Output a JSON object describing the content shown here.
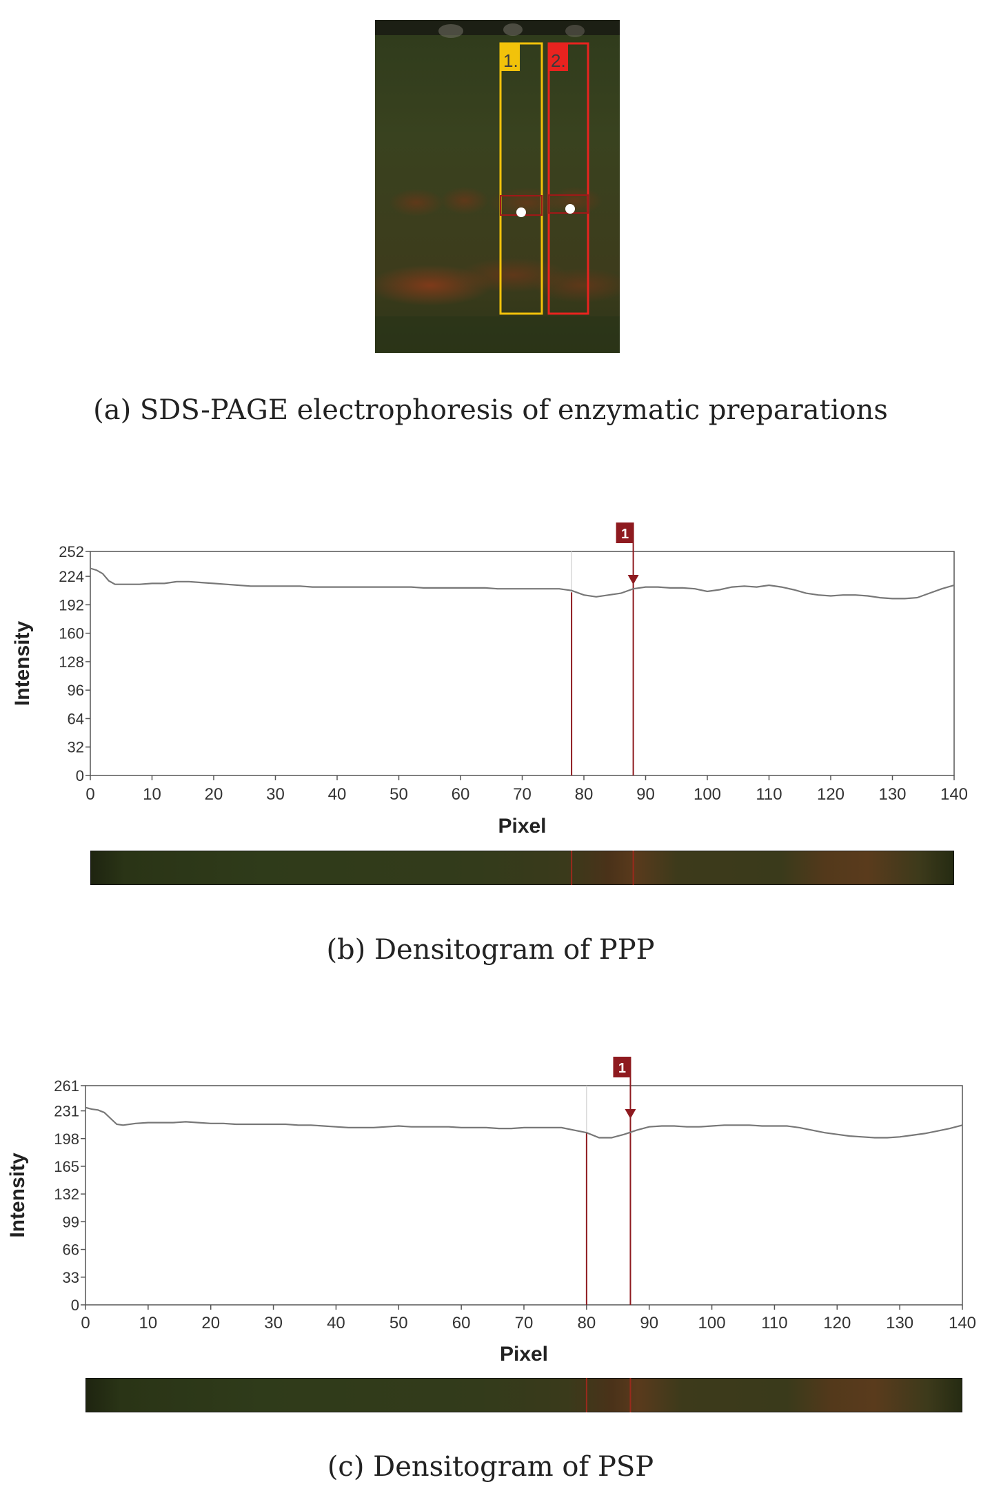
{
  "gel": {
    "lanes": [
      {
        "label": "1.",
        "color": "#f2c20a"
      },
      {
        "label": "2.",
        "color": "#e8231f"
      }
    ]
  },
  "captions": {
    "a": "(a) SDS-PAGE electrophoresis of enzymatic preparations",
    "b": "(b) Densitogram of PPP",
    "c": "(c) Densitogram of PSP"
  },
  "chart_data": [
    {
      "type": "line",
      "title": "",
      "xlabel": "Pixel",
      "ylabel": "Intensity",
      "xlim": [
        0,
        140
      ],
      "ylim": [
        0,
        252
      ],
      "xticks": [
        0,
        10,
        20,
        30,
        40,
        50,
        60,
        70,
        80,
        90,
        100,
        110,
        120,
        130,
        140
      ],
      "yticks": [
        0,
        32,
        64,
        96,
        128,
        160,
        192,
        224,
        252
      ],
      "marker_label": "1",
      "bounds": [
        78,
        88
      ],
      "peak": 88,
      "line_color": "#777777",
      "marker_color": "#8e1a1f",
      "x": [
        0,
        1,
        2,
        3,
        4,
        6,
        8,
        10,
        12,
        14,
        16,
        18,
        20,
        22,
        24,
        26,
        28,
        30,
        32,
        34,
        36,
        38,
        40,
        42,
        44,
        46,
        48,
        50,
        52,
        54,
        56,
        58,
        60,
        62,
        64,
        66,
        68,
        70,
        72,
        74,
        76,
        78,
        80,
        82,
        84,
        86,
        88,
        90,
        92,
        94,
        96,
        98,
        100,
        102,
        104,
        106,
        108,
        110,
        112,
        114,
        116,
        118,
        120,
        122,
        124,
        126,
        128,
        130,
        132,
        134,
        136,
        138,
        140
      ],
      "y": [
        233,
        231,
        227,
        219,
        215,
        215,
        215,
        216,
        216,
        218,
        218,
        217,
        216,
        215,
        214,
        213,
        213,
        213,
        213,
        213,
        212,
        212,
        212,
        212,
        212,
        212,
        212,
        212,
        212,
        211,
        211,
        211,
        211,
        211,
        211,
        210,
        210,
        210,
        210,
        210,
        210,
        208,
        203,
        201,
        203,
        205,
        210,
        212,
        212,
        211,
        211,
        210,
        207,
        209,
        212,
        213,
        212,
        214,
        212,
        209,
        205,
        203,
        202,
        203,
        203,
        202,
        200,
        199,
        199,
        200,
        205,
        210,
        214
      ]
    },
    {
      "type": "line",
      "title": "",
      "xlabel": "Pixel",
      "ylabel": "Intensity",
      "xlim": [
        0,
        140
      ],
      "ylim": [
        0,
        261
      ],
      "xticks": [
        0,
        10,
        20,
        30,
        40,
        50,
        60,
        70,
        80,
        90,
        100,
        110,
        120,
        130,
        140
      ],
      "yticks": [
        0,
        33,
        66,
        99,
        132,
        165,
        198,
        231,
        261
      ],
      "marker_label": "1",
      "bounds": [
        80,
        87
      ],
      "peak": 87,
      "line_color": "#777777",
      "marker_color": "#8e1a1f",
      "x": [
        0,
        1,
        2,
        3,
        4,
        5,
        6,
        8,
        10,
        12,
        14,
        16,
        18,
        20,
        22,
        24,
        26,
        28,
        30,
        32,
        34,
        36,
        38,
        40,
        42,
        44,
        46,
        48,
        50,
        52,
        54,
        56,
        58,
        60,
        62,
        64,
        66,
        68,
        70,
        72,
        74,
        76,
        78,
        80,
        82,
        84,
        86,
        88,
        90,
        92,
        94,
        96,
        98,
        100,
        102,
        104,
        106,
        108,
        110,
        112,
        114,
        116,
        118,
        120,
        122,
        124,
        126,
        128,
        130,
        132,
        134,
        136,
        138,
        140
      ],
      "y": [
        235,
        233,
        232,
        229,
        222,
        215,
        214,
        216,
        217,
        217,
        217,
        218,
        217,
        216,
        216,
        215,
        215,
        215,
        215,
        215,
        214,
        214,
        213,
        212,
        211,
        211,
        211,
        212,
        213,
        212,
        212,
        212,
        212,
        211,
        211,
        211,
        210,
        210,
        211,
        211,
        211,
        211,
        208,
        205,
        199,
        199,
        203,
        208,
        212,
        213,
        213,
        212,
        212,
        213,
        214,
        214,
        214,
        213,
        213,
        213,
        211,
        208,
        205,
        203,
        201,
        200,
        199,
        199,
        200,
        202,
        204,
        207,
        210,
        214
      ]
    }
  ]
}
